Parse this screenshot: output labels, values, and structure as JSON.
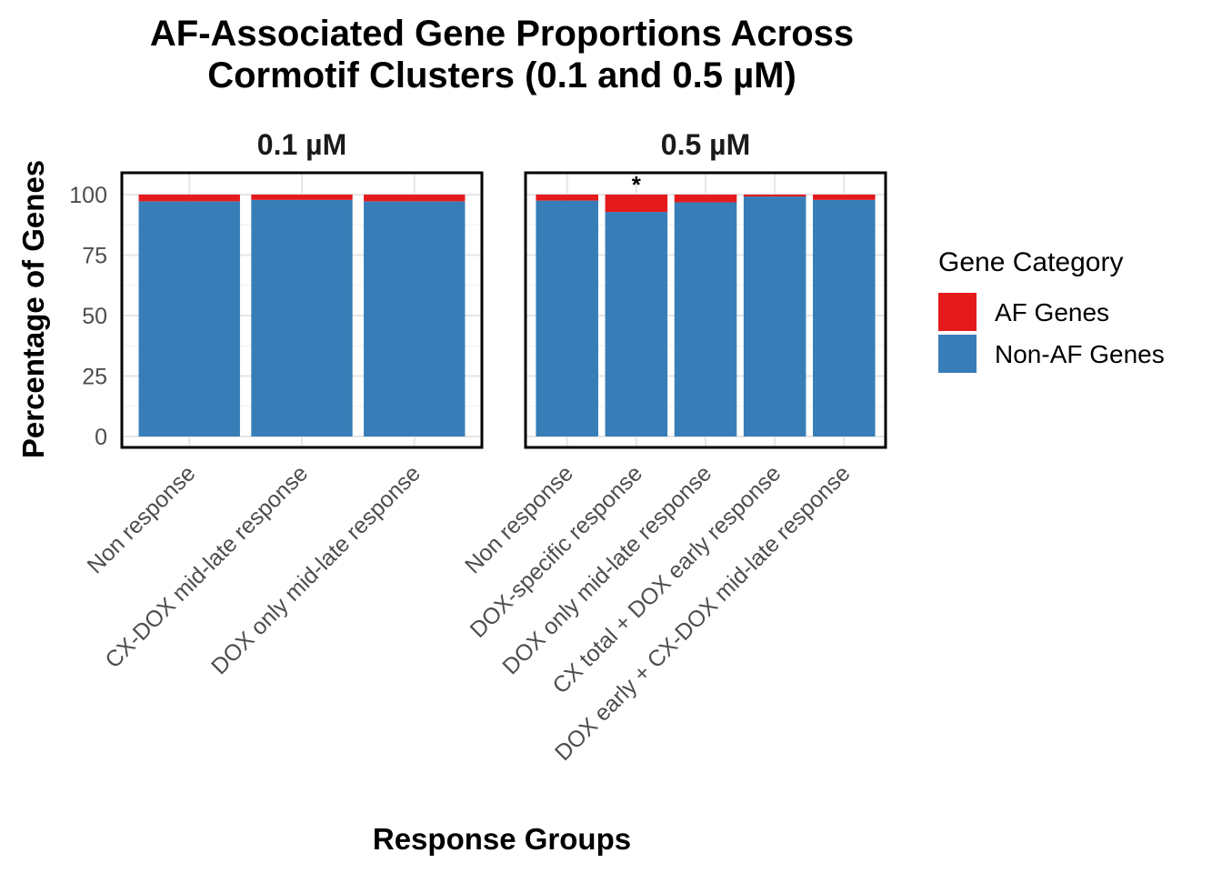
{
  "chart_data": {
    "type": "bar",
    "stacked": true,
    "title_lines": [
      "AF-Associated Gene Proportions Across",
      "Cormotif Clusters (0.1 and 0.5 µM)"
    ],
    "xlabel": "Response Groups",
    "ylabel": "Percentage of Genes",
    "ylim": [
      0,
      100
    ],
    "yticks": [
      0,
      25,
      50,
      75,
      100
    ],
    "grid": true,
    "legend": {
      "title": "Gene Category",
      "position": "right",
      "entries": [
        {
          "name": "AF Genes",
          "color": "#E41A1C"
        },
        {
          "name": "Non-AF Genes",
          "color": "#377EB8"
        }
      ]
    },
    "panels": [
      {
        "label": "0.1 µM",
        "categories": [
          "Non response",
          "CX-DOX mid-late response",
          "DOX only mid-late response"
        ],
        "series": [
          {
            "name": "Non-AF Genes",
            "values": [
              97.2,
              97.8,
              97.2
            ]
          },
          {
            "name": "AF Genes",
            "values": [
              2.8,
              2.2,
              2.8
            ]
          }
        ],
        "annotations": [
          "",
          "",
          ""
        ]
      },
      {
        "label": "0.5 µM",
        "categories": [
          "Non response",
          "DOX-specific response",
          "DOX only mid-late response",
          "CX total + DOX early response",
          "DOX early + CX-DOX mid-late response"
        ],
        "series": [
          {
            "name": "Non-AF Genes",
            "values": [
              97.5,
              92.8,
              96.8,
              99.2,
              97.8
            ]
          },
          {
            "name": "AF Genes",
            "values": [
              2.5,
              7.2,
              3.2,
              0.8,
              2.2
            ]
          }
        ],
        "annotations": [
          "",
          "*",
          "",
          "",
          ""
        ]
      }
    ]
  }
}
